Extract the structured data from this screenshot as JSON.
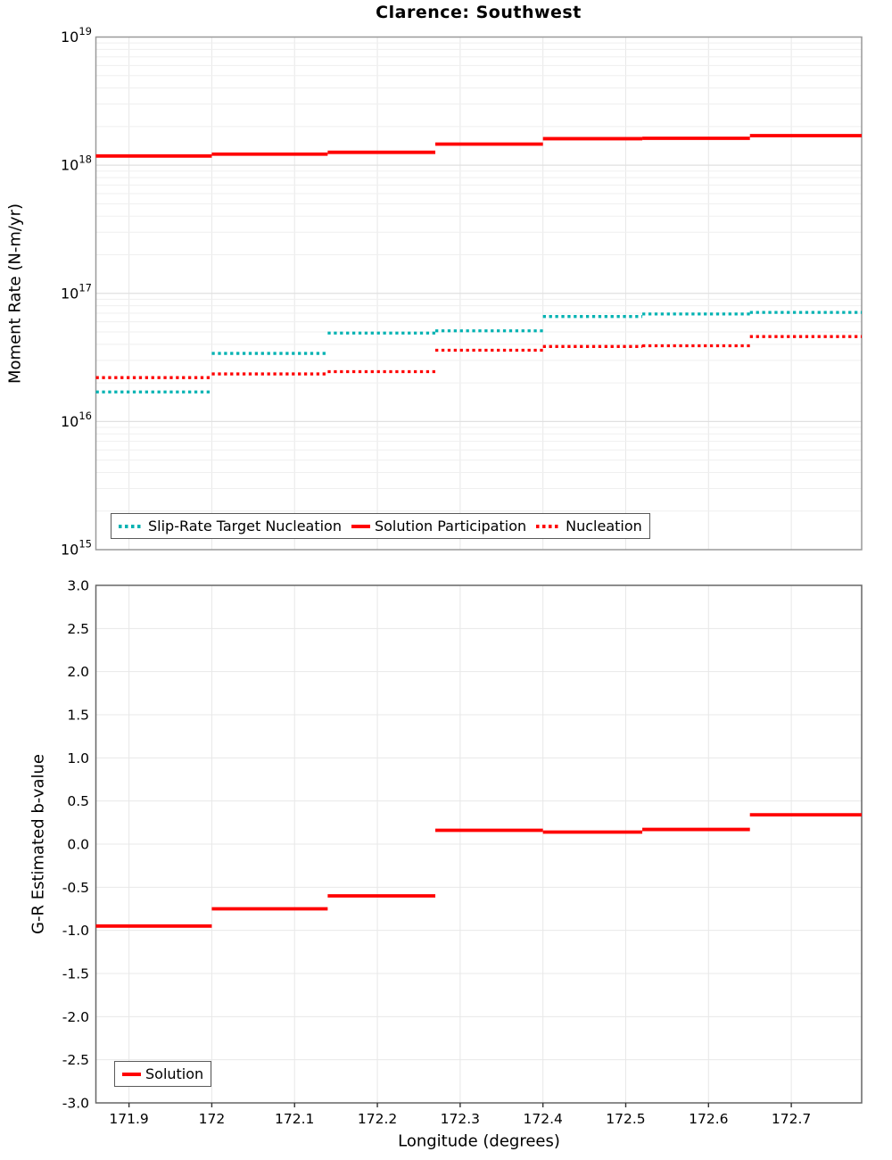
{
  "page_title": "Clarence: Southwest",
  "chart_data": [
    {
      "id": "moment-rate",
      "type": "line",
      "subtype": "step",
      "title": "Clarence: Southwest",
      "ylabel": "Moment Rate (N-m/yr)",
      "yscale": "log",
      "ylim": [
        1000000000000000.0,
        1e+19
      ],
      "ytick_exponents": [
        "19",
        "18",
        "17",
        "16",
        "15"
      ],
      "xlim": [
        171.86,
        172.785
      ],
      "xtick_labels": [
        "171.9",
        "172",
        "172.1",
        "172.2",
        "172.3",
        "172.4",
        "172.5",
        "172.6",
        "172.7"
      ],
      "grid": true,
      "legend_position": "lower left",
      "step_edges": [
        171.86,
        172.0,
        172.14,
        172.27,
        172.4,
        172.52,
        172.65,
        172.785
      ],
      "series": [
        {
          "name": "Slip-Rate Target Nucleation",
          "color": "#00B2B2",
          "line_style": "dotted",
          "values": [
            1.7e+16,
            3.4e+16,
            4.9e+16,
            5.1e+16,
            6.6e+16,
            6.9e+16,
            7.1e+16
          ]
        },
        {
          "name": "Solution Participation",
          "color": "#FF0000",
          "line_style": "solid",
          "values": [
            1.18e+18,
            1.22e+18,
            1.26e+18,
            1.46e+18,
            1.61e+18,
            1.62e+18,
            1.7e+18
          ]
        },
        {
          "name": "Nucleation",
          "color": "#FF0000",
          "line_style": "dotted",
          "values": [
            2.2e+16,
            2.35e+16,
            2.45e+16,
            3.6e+16,
            3.85e+16,
            3.9e+16,
            4.6e+16
          ]
        }
      ]
    },
    {
      "id": "b-value",
      "type": "line",
      "subtype": "step",
      "title": "",
      "ylabel": "G-R Estimated b-value",
      "xlabel": "Longitude (degrees)",
      "yscale": "linear",
      "ylim": [
        -3.0,
        3.0
      ],
      "ytick_labels": [
        "3.0",
        "2.5",
        "2.0",
        "1.5",
        "1.0",
        "0.5",
        "0.0",
        "-0.5",
        "-1.0",
        "-1.5",
        "-2.0",
        "-2.5",
        "-3.0"
      ],
      "xlim": [
        171.86,
        172.785
      ],
      "xtick_labels": [
        "171.9",
        "172",
        "172.1",
        "172.2",
        "172.3",
        "172.4",
        "172.5",
        "172.6",
        "172.7"
      ],
      "grid": true,
      "legend_position": "lower left",
      "step_edges": [
        171.86,
        172.0,
        172.14,
        172.27,
        172.4,
        172.52,
        172.65,
        172.785
      ],
      "series": [
        {
          "name": "Solution",
          "color": "#FF0000",
          "line_style": "solid",
          "values": [
            -0.95,
            -0.75,
            -0.6,
            0.16,
            0.14,
            0.17,
            0.34
          ]
        }
      ]
    }
  ]
}
